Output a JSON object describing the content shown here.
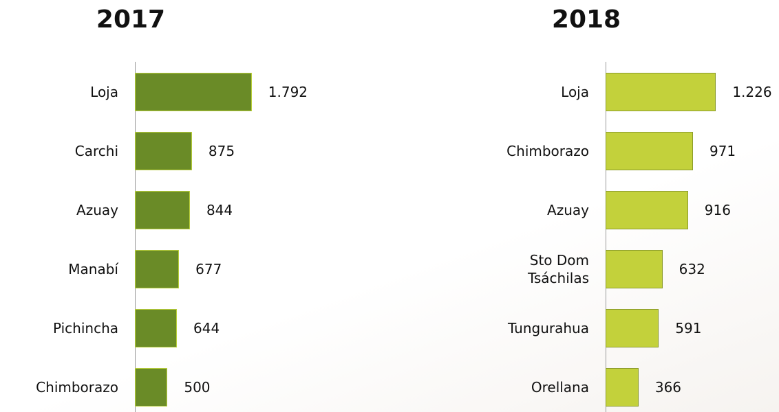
{
  "chart_data": [
    {
      "type": "bar",
      "orientation": "horizontal",
      "title": "2017",
      "categories": [
        "Loja",
        "Carchi",
        "Azuay",
        "Manabí",
        "Pichincha",
        "Chimborazo"
      ],
      "values": [
        1792,
        875,
        844,
        677,
        644,
        500
      ],
      "value_labels": [
        "1.792",
        "875",
        "844",
        "677",
        "644",
        "500"
      ],
      "color": "#6a8b27",
      "xlim": [
        0,
        1900
      ]
    },
    {
      "type": "bar",
      "orientation": "horizontal",
      "title": "2018",
      "categories": [
        "Loja",
        "Chimborazo",
        "Azuay",
        "Sto Dom Tsáchilas",
        "Tungurahua",
        "Orellana"
      ],
      "values": [
        1226,
        971,
        916,
        632,
        591,
        366
      ],
      "value_labels": [
        "1.226",
        "971",
        "916",
        "632",
        "591",
        "366"
      ],
      "color": "#c3d13b",
      "xlim": [
        0,
        1300
      ]
    }
  ]
}
